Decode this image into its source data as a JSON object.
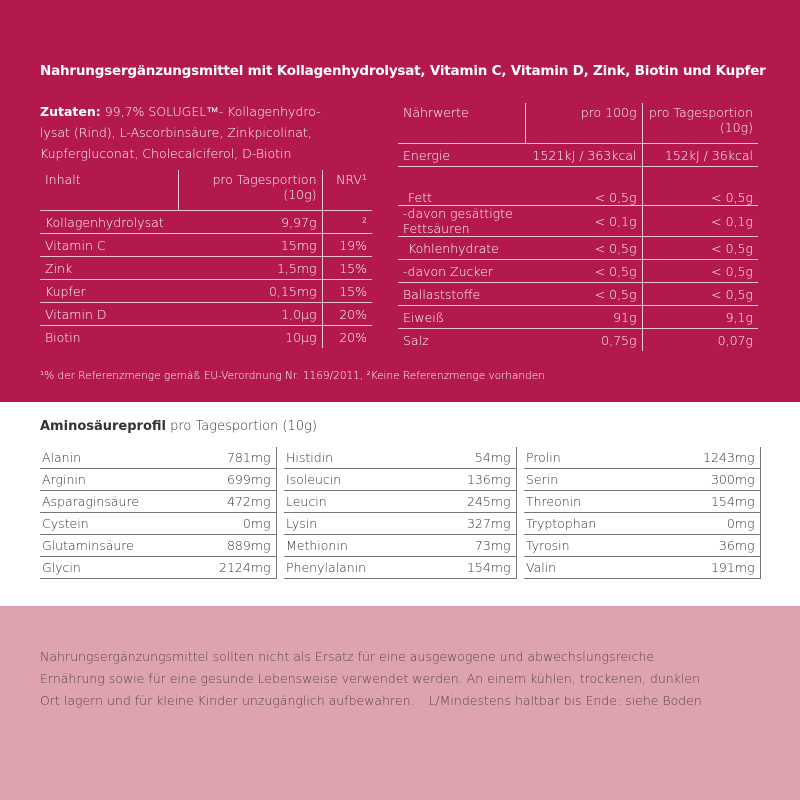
{
  "title": "Nahrungsergänzungsmittel mit Kollagenhydrolysat, Vitamin C, Vitamin D, Zink, Biotin und Kupfer",
  "ingredients": {
    "label": "Zutaten:",
    "lines": [
      "99,7% SOLUGEL™- Kollagenhydro-",
      "lysat (Rind), L-Ascorbinsäure, Zinkpicolinat,",
      "Kupfergluconat, Cholecalciferol, D-Biotin"
    ]
  },
  "content_table": {
    "header": [
      "Inhalt",
      "pro Tagesportion (10g)",
      "NRV¹"
    ],
    "rows": [
      [
        "Kollagenhydrolysat",
        "9,97g",
        "²"
      ],
      [
        "Vitamin C",
        "15mg",
        "19%"
      ],
      [
        "Zink",
        "1,5mg",
        "15%"
      ],
      [
        "Kupfer",
        "0,15mg",
        "15%"
      ],
      [
        "Vitamin D",
        "1,0µg",
        "20%"
      ],
      [
        "Biotin",
        "10µg",
        "20%"
      ]
    ]
  },
  "nutrition_table": {
    "header": [
      "Nährwerte",
      "pro 100g",
      "pro Tagesportion (10g)"
    ],
    "rows": [
      [
        "Energie",
        "1521kJ / 363kcal",
        "152kJ / 36kcal"
      ],
      [
        "Fett",
        "< 0,5g",
        "< 0,5g"
      ],
      [
        "-davon gesättigte Fettsäuren",
        "< 0,1g",
        "< 0,1g"
      ],
      [
        "Kohlenhydrate",
        "< 0,5g",
        "< 0,5g"
      ],
      [
        "-davon Zucker",
        "< 0,5g",
        "< 0,5g"
      ],
      [
        "Ballaststoffe",
        "< 0,5g",
        "< 0,5g"
      ],
      [
        "Eiweiß",
        "91g",
        "9,1g"
      ],
      [
        "Salz",
        "0,75g",
        "0,07g"
      ]
    ]
  },
  "footnote": "¹% der Referenzmenge gemäß EU-Verordnung Nr. 1169/2011, ²Keine Referenzmenge vorhanden",
  "amino": {
    "title": "Aminosäureprofil",
    "subtitle": "pro Tagesportion (10g)",
    "columns": [
      [
        [
          "Alanin",
          "781mg"
        ],
        [
          "Arginin",
          "699mg"
        ],
        [
          "Asparaginsäure",
          "472mg"
        ],
        [
          "Cystein",
          "0mg"
        ],
        [
          "Glutaminsäure",
          "889mg"
        ],
        [
          "Glycin",
          "2124mg"
        ]
      ],
      [
        [
          "Histidin",
          "54mg"
        ],
        [
          "Isoleucin",
          "136mg"
        ],
        [
          "Leucin",
          "245mg"
        ],
        [
          "Lysin",
          "327mg"
        ],
        [
          "Methionin",
          "73mg"
        ],
        [
          "Phenylalanin",
          "154mg"
        ]
      ],
      [
        [
          "Prolin",
          "1243mg"
        ],
        [
          "Serin",
          "300mg"
        ],
        [
          "Threonin",
          "154mg"
        ],
        [
          "Tryptophan",
          "0mg"
        ],
        [
          "Tyrosin",
          "36mg"
        ],
        [
          "Valin",
          "191mg"
        ]
      ]
    ]
  },
  "note": {
    "lines": [
      "Nahrungsergänzungsmittel sollten nicht als Ersatz für eine ausgewogene und abwechslungsreiche",
      "Ernährung sowie für eine gesunde Lebensweise verwendet werden. An einem kühlen, trockenen, dunklen",
      "Ort lagern und für kleine Kinder unzugänglich aufbewahren."
    ],
    "shelf_life": "L/Mindestens haltbar bis Ende: siehe Boden"
  }
}
